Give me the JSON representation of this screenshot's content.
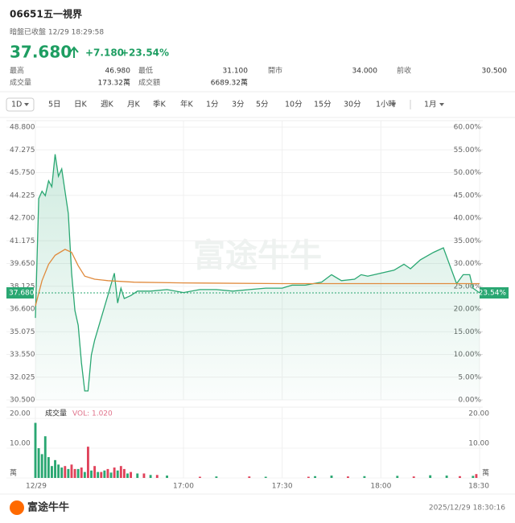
{
  "header": {
    "code": "06651",
    "name": "五一視界",
    "status": "暗盤已收盤 12/29 18:29:58",
    "price": "37.680",
    "change": "+7.180",
    "change_pct": "+23.54%"
  },
  "stats": [
    [
      {
        "label": "最高",
        "value": "46.980"
      },
      {
        "label": "最低",
        "value": "31.100"
      },
      {
        "label": "開市",
        "value": "34.000"
      },
      {
        "label": "前收",
        "value": "30.500"
      }
    ],
    [
      {
        "label": "成交量",
        "value": "173.32萬"
      },
      {
        "label": "成交額",
        "value": "6689.32萬"
      }
    ]
  ],
  "tabs": [
    "1D",
    "5日",
    "日K",
    "週K",
    "月K",
    "季K",
    "年K",
    "1分",
    "3分",
    "5分",
    "10分",
    "15分",
    "30分",
    "1小時",
    "1月"
  ],
  "watermark": "富途牛牛",
  "footer": {
    "brand": "富途牛牛",
    "timestamp": "2025/12/29 18:30:16"
  },
  "chart_data": [
    {
      "type": "line",
      "xlim": [
        975,
        1110
      ],
      "ylim": [
        30.5,
        48.8
      ],
      "yticks": [
        {
          "value": 48.8,
          "label": "48.800"
        },
        {
          "value": 47.275,
          "label": "47.275"
        },
        {
          "value": 45.75,
          "label": "45.750"
        },
        {
          "value": 44.225,
          "label": "44.225"
        },
        {
          "value": 42.7,
          "label": "42.700"
        },
        {
          "value": 41.175,
          "label": "41.175"
        },
        {
          "value": 39.65,
          "label": "39.650"
        },
        {
          "value": 38.125,
          "label": "38.125"
        },
        {
          "value": 36.6,
          "label": "36.600"
        },
        {
          "value": 35.075,
          "label": "35.075"
        },
        {
          "value": 33.55,
          "label": "33.550"
        },
        {
          "value": 32.025,
          "label": "32.025"
        },
        {
          "value": 30.5,
          "label": "30.500"
        }
      ],
      "y2lim": [
        0,
        60
      ],
      "y2ticks": [
        {
          "value": 60,
          "label": "60.00%"
        },
        {
          "value": 55,
          "label": "55.00%"
        },
        {
          "value": 50,
          "label": "50.00%"
        },
        {
          "value": 45,
          "label": "45.00%"
        },
        {
          "value": 40,
          "label": "40.00%"
        },
        {
          "value": 35,
          "label": "35.00%"
        },
        {
          "value": 30,
          "label": "30.00%"
        },
        {
          "value": 25,
          "label": "25.00%"
        },
        {
          "value": 20,
          "label": "20.00%"
        },
        {
          "value": 15,
          "label": "15.00%"
        },
        {
          "value": 10,
          "label": "10.00%"
        },
        {
          "value": 5,
          "label": "5.00%"
        },
        {
          "value": 0,
          "label": "0.00%"
        }
      ],
      "reference_line": {
        "value": 37.68,
        "label": "37.680",
        "y2_label": "23.54%"
      },
      "series": [
        {
          "color": "#2aa772",
          "x": [
            975,
            976,
            977,
            978,
            979,
            980,
            981,
            982,
            983,
            984,
            985,
            986,
            987,
            988,
            989,
            990,
            991,
            992,
            993,
            995,
            997,
            999,
            1000,
            1001,
            1002,
            1004,
            1006,
            1010,
            1015,
            1020,
            1025,
            1030,
            1035,
            1040,
            1045,
            1050,
            1053,
            1057,
            1062,
            1065,
            1068,
            1072,
            1074,
            1076,
            1080,
            1084,
            1087,
            1089,
            1092,
            1096,
            1099,
            1101,
            1103,
            1105,
            1107,
            1108,
            1110
          ],
          "values": [
            36.0,
            44.0,
            44.5,
            44.2,
            45.2,
            44.8,
            46.98,
            45.5,
            46.0,
            44.5,
            43.0,
            39.0,
            36.5,
            35.5,
            33.0,
            31.1,
            31.1,
            33.5,
            34.5,
            36.0,
            37.5,
            39.0,
            37.0,
            38.0,
            37.3,
            37.5,
            37.8,
            37.8,
            37.9,
            37.7,
            37.9,
            37.9,
            37.8,
            37.9,
            38.0,
            38.0,
            38.2,
            38.2,
            38.4,
            38.9,
            38.5,
            38.6,
            38.9,
            38.8,
            39.0,
            39.2,
            39.6,
            39.3,
            39.9,
            40.4,
            40.7,
            39.5,
            38.3,
            38.9,
            38.9,
            38.0,
            37.68
          ]
        },
        {
          "color": "#e08a3c",
          "x": [
            975,
            977,
            979,
            981,
            984,
            986,
            988,
            990,
            993,
            997,
            1005,
            1020,
            1050,
            1080,
            1110
          ],
          "values": [
            36.8,
            38.5,
            39.6,
            40.2,
            40.6,
            40.4,
            39.5,
            38.8,
            38.6,
            38.5,
            38.4,
            38.35,
            38.3,
            38.3,
            38.3
          ]
        }
      ]
    },
    {
      "type": "bar",
      "title": "成交量",
      "annotation": "VOL: 1.020",
      "xlim": [
        975,
        1110
      ],
      "xticks": [
        {
          "value": 975,
          "label": "12/29"
        },
        {
          "value": 1020,
          "label": "17:00"
        },
        {
          "value": 1050,
          "label": "17:30"
        },
        {
          "value": 1080,
          "label": "18:00"
        },
        {
          "value": 1110,
          "label": "18:30"
        }
      ],
      "ylim": [
        0,
        20
      ],
      "yticks": [
        {
          "value": 20,
          "label": "20.00"
        },
        {
          "value": 10,
          "label": "10.00"
        },
        {
          "value": 0,
          "label": "萬"
        }
      ],
      "series": [
        {
          "color": "#2aa772",
          "x": [
            975,
            976,
            977,
            978,
            979,
            980,
            981,
            982,
            983,
            985,
            988,
            990,
            992,
            994,
            996,
            998,
            1000,
            1003,
            1006,
            1010,
            1015,
            1030,
            1045,
            1060,
            1065,
            1075,
            1085,
            1095,
            1100,
            1108
          ],
          "values": [
            18.5,
            10,
            8,
            14,
            7,
            4,
            6,
            4.5,
            3.5,
            3,
            3,
            2,
            2.5,
            2,
            2.5,
            1.8,
            2.5,
            1.5,
            1.5,
            1,
            0.8,
            0.5,
            0.4,
            0.6,
            0.8,
            0.6,
            0.7,
            0.9,
            0.8,
            0.7
          ]
        },
        {
          "color": "#e0425a",
          "x": [
            984,
            986,
            987,
            989,
            991,
            993,
            995,
            997,
            999,
            1001,
            1002,
            1004,
            1008,
            1012,
            1025,
            1040,
            1058,
            1070,
            1090,
            1104,
            1109
          ],
          "values": [
            4,
            4.5,
            3,
            3.5,
            10.5,
            4,
            2,
            3,
            3.5,
            4,
            3,
            2,
            1.5,
            1,
            0.4,
            0.5,
            0.4,
            0.5,
            0.5,
            0.6,
            1.3
          ]
        }
      ]
    }
  ]
}
